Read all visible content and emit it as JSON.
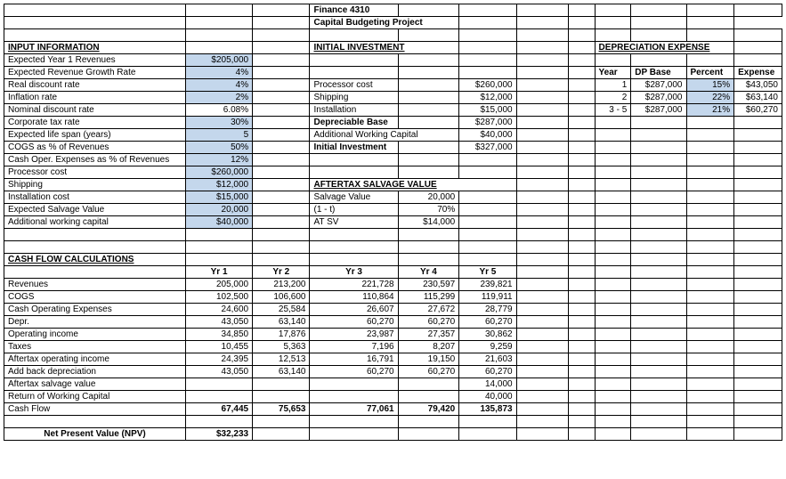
{
  "header": {
    "course": "Finance 4310",
    "title": "Capital Budgeting Project"
  },
  "sections": {
    "input": "INPUT INFORMATION",
    "initial": "INITIAL INVESTMENT",
    "depr": "DEPRECIATION EXPENSE",
    "salvage": "AFTERTAX SALVAGE VALUE",
    "cashflow": "CASH FLOW CALCULATIONS",
    "npv": "Net Present Value (NPV)"
  },
  "input": {
    "rows": {
      "rev1": {
        "label": "Expected Year 1 Revenues",
        "val": "$205,000"
      },
      "growth": {
        "label": "Expected Revenue Growth Rate",
        "val": "4%"
      },
      "real": {
        "label": "Real discount rate",
        "val": "4%"
      },
      "infl": {
        "label": "Inflation rate",
        "val": "2%"
      },
      "nominal": {
        "label": "Nominal discount rate",
        "val": "6.08%"
      },
      "tax": {
        "label": "Corporate tax rate",
        "val": "30%"
      },
      "life": {
        "label": "Expected life span (years)",
        "val": "5"
      },
      "cogs": {
        "label": "COGS as % of Revenues",
        "val": "50%"
      },
      "opex": {
        "label": "Cash Oper. Expenses as % of Revenues",
        "val": "12%"
      },
      "proc": {
        "label": "Processor cost",
        "val": "$260,000"
      },
      "ship": {
        "label": "Shipping",
        "val": "$12,000"
      },
      "inst": {
        "label": "Installation cost",
        "val": "$15,000"
      },
      "salvage": {
        "label": "Expected Salvage Value",
        "val": "20,000"
      },
      "awc": {
        "label": "Additional working capital",
        "val": "$40,000"
      }
    }
  },
  "initial": {
    "proc": {
      "label": "Processor cost",
      "val": "$260,000"
    },
    "ship": {
      "label": "Shipping",
      "val": "$12,000"
    },
    "inst": {
      "label": "Installation",
      "val": "$15,000"
    },
    "base": {
      "label": "Depreciable Base",
      "val": "$287,000"
    },
    "awc": {
      "label": "Additional Working Capital",
      "val": "$40,000"
    },
    "inv": {
      "label": "Initial Investment",
      "val": "$327,000"
    }
  },
  "salvage": {
    "sv": {
      "label": "Salvage Value",
      "val": "20,000"
    },
    "omt": {
      "label": "(1 - t)",
      "val": "70%"
    },
    "atsv": {
      "label": "AT SV",
      "val": "$14,000"
    }
  },
  "depr": {
    "head": {
      "year": "Year",
      "base": "DP Base",
      "pct": "Percent",
      "exp": "Expense"
    },
    "r1": {
      "year": "1",
      "base": "$287,000",
      "pct": "15%",
      "exp": "$43,050"
    },
    "r2": {
      "year": "2",
      "base": "$287,000",
      "pct": "22%",
      "exp": "$63,140"
    },
    "r3": {
      "year": "3 - 5",
      "base": "$287,000",
      "pct": "21%",
      "exp": "$60,270"
    }
  },
  "cf": {
    "head": {
      "y1": "Yr 1",
      "y2": "Yr 2",
      "y3": "Yr 3",
      "y4": "Yr 4",
      "y5": "Yr 5"
    },
    "rev": {
      "label": "Revenues",
      "v": [
        "205,000",
        "213,200",
        "221,728",
        "230,597",
        "239,821"
      ]
    },
    "cogs": {
      "label": "COGS",
      "v": [
        "102,500",
        "106,600",
        "110,864",
        "115,299",
        "119,911"
      ]
    },
    "coe": {
      "label": "Cash Operating Expenses",
      "v": [
        "24,600",
        "25,584",
        "26,607",
        "27,672",
        "28,779"
      ]
    },
    "depr": {
      "label": "Depr.",
      "v": [
        "43,050",
        "63,140",
        "60,270",
        "60,270",
        "60,270"
      ]
    },
    "oi": {
      "label": "Operating income",
      "v": [
        "34,850",
        "17,876",
        "23,987",
        "27,357",
        "30,862"
      ]
    },
    "tax": {
      "label": "Taxes",
      "v": [
        "10,455",
        "5,363",
        "7,196",
        "8,207",
        "9,259"
      ]
    },
    "atoi": {
      "label": "Aftertax operating income",
      "v": [
        "24,395",
        "12,513",
        "16,791",
        "19,150",
        "21,603"
      ]
    },
    "add": {
      "label": "Add back depreciation",
      "v": [
        "43,050",
        "63,140",
        "60,270",
        "60,270",
        "60,270"
      ]
    },
    "atsv": {
      "label": "Aftertax salvage value",
      "v": [
        "",
        "",
        "",
        "",
        "14,000"
      ]
    },
    "rwc": {
      "label": "Return of Working Capital",
      "v": [
        "",
        "",
        "",
        "",
        "40,000"
      ]
    },
    "cash": {
      "label": "Cash Flow",
      "v": [
        "67,445",
        "75,653",
        "77,061",
        "79,420",
        "135,873"
      ]
    }
  },
  "npv": "$32,233"
}
